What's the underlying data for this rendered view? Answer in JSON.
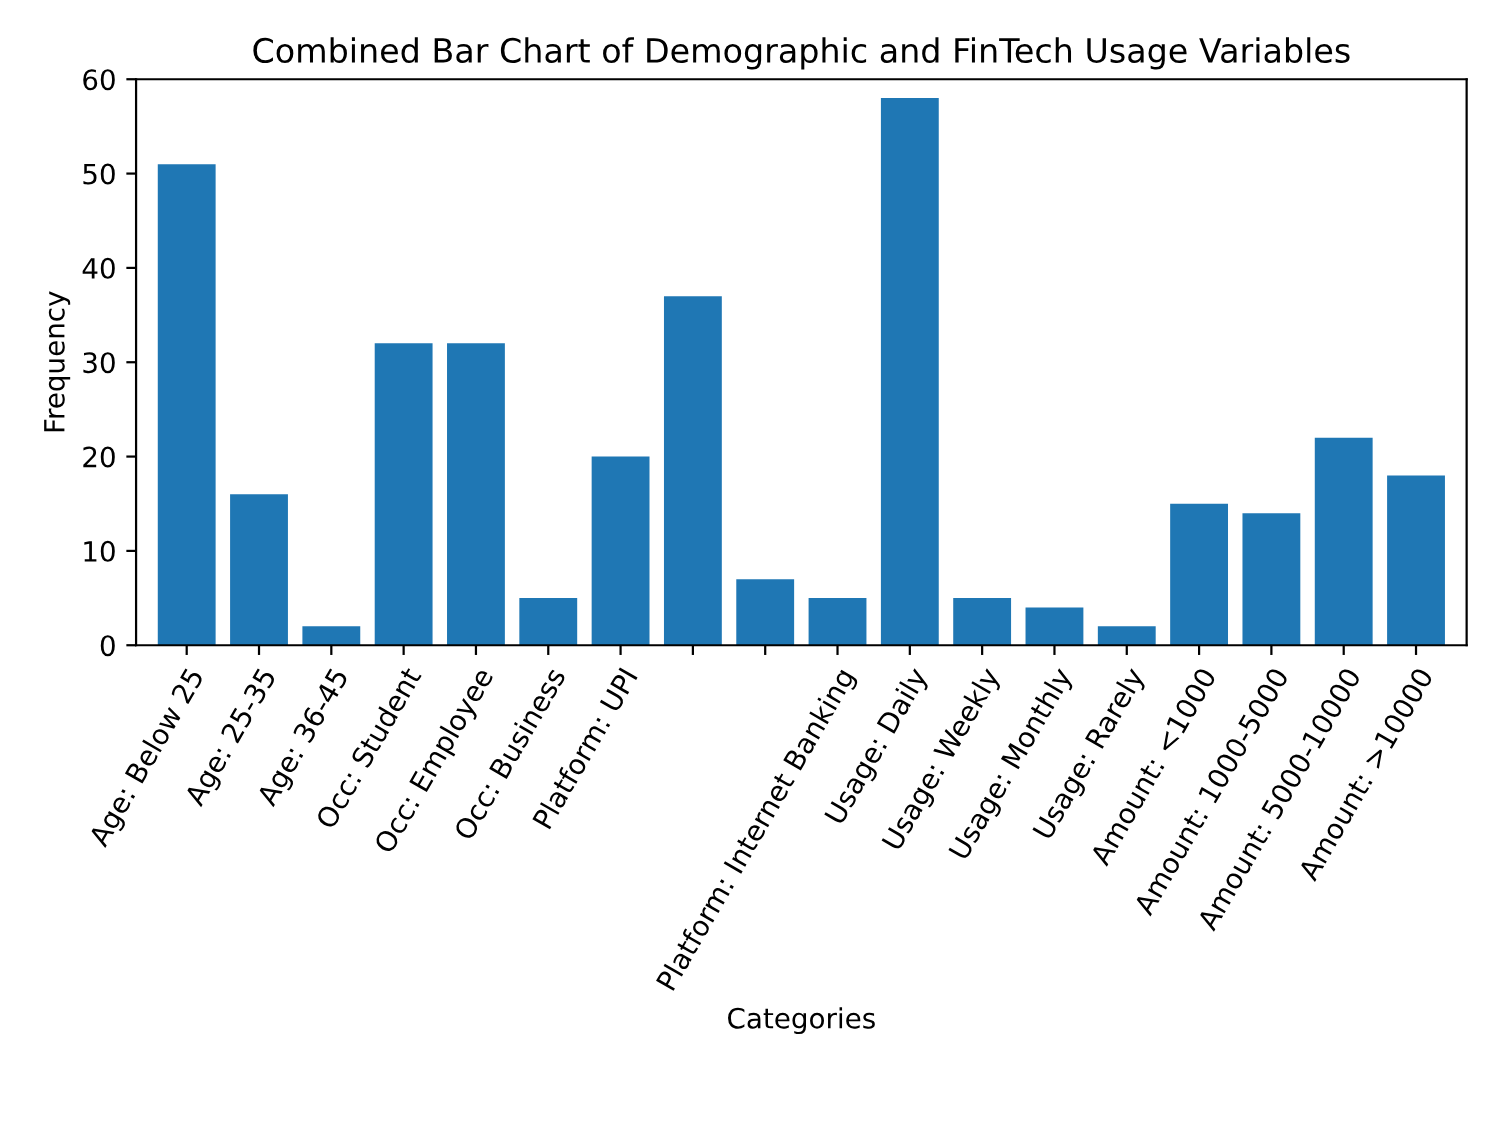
{
  "chart_data": {
    "type": "bar",
    "title": "Combined Bar Chart of Demographic and FinTech Usage Variables",
    "xlabel": "Categories",
    "ylabel": "Frequency",
    "categories": [
      "Age: Below 25",
      "Age: 25-35",
      "Age: 36-45",
      "Occ: Student",
      "Occ: Employee",
      "Occ: Business",
      "Platform: UPI",
      null,
      null,
      "Platform: Internet Banking",
      "Usage: Daily",
      "Usage: Weekly",
      "Usage: Monthly",
      "Usage: Rarely",
      "Amount: <1000",
      "Amount: 1000-5000",
      "Amount: 5000-10000",
      "Amount: >10000"
    ],
    "values": [
      51,
      16,
      2,
      32,
      32,
      5,
      20,
      37,
      7,
      5,
      58,
      5,
      4,
      2,
      15,
      14,
      22,
      18
    ],
    "color": "#1f77b4",
    "ylim": [
      0,
      60
    ],
    "yticks": [
      0,
      10,
      20,
      30,
      40,
      50,
      60
    ],
    "grid": false
  }
}
